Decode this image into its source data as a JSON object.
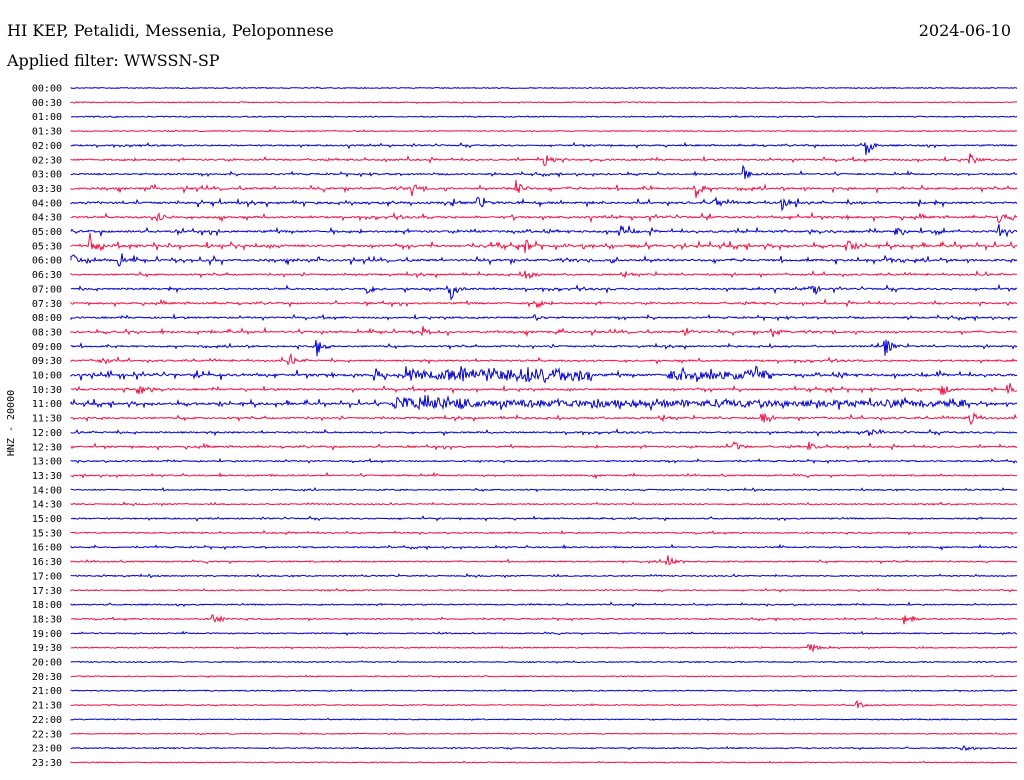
{
  "header": {
    "station": "HI KEP, Petalidi, Messenia, Peloponnese",
    "date": "2024-06-10",
    "filter": "Applied filter: WWSSN-SP"
  },
  "chart_data": {
    "type": "line",
    "title": "HI KEP, Petalidi, Messenia, Peloponnese",
    "ylabel": "HNZ - 20000",
    "xlabel": "",
    "grid": false,
    "series_colors": [
      "#0000cc",
      "#ee1144"
    ],
    "row_labels": [
      "00:00",
      "00:30",
      "01:00",
      "01:30",
      "02:00",
      "02:30",
      "03:00",
      "03:30",
      "04:00",
      "04:30",
      "05:00",
      "05:30",
      "06:00",
      "06:30",
      "07:00",
      "07:30",
      "08:00",
      "08:30",
      "09:00",
      "09:30",
      "10:00",
      "10:30",
      "11:00",
      "11:30",
      "12:00",
      "12:30",
      "13:00",
      "13:30",
      "14:00",
      "14:30",
      "15:00",
      "15:30",
      "16:00",
      "16:30",
      "17:00",
      "17:30",
      "18:00",
      "18:30",
      "19:00",
      "19:30",
      "20:00",
      "20:30",
      "21:00",
      "21:30",
      "22:00",
      "22:30",
      "23:00",
      "23:30"
    ],
    "row_activity": [
      0.1,
      0.15,
      0.15,
      0.15,
      0.4,
      0.5,
      0.45,
      0.7,
      0.75,
      0.7,
      0.75,
      0.85,
      0.8,
      0.55,
      0.6,
      0.55,
      0.5,
      0.6,
      0.5,
      0.55,
      0.9,
      0.6,
      0.85,
      0.55,
      0.5,
      0.5,
      0.35,
      0.4,
      0.3,
      0.3,
      0.35,
      0.3,
      0.35,
      0.35,
      0.3,
      0.25,
      0.3,
      0.3,
      0.25,
      0.2,
      0.2,
      0.15,
      0.15,
      0.15,
      0.15,
      0.15,
      0.2,
      0.15
    ],
    "events": [
      {
        "row": 4,
        "pos": 0.84,
        "amp": 14
      },
      {
        "row": 5,
        "pos": 0.5,
        "amp": 10
      },
      {
        "row": 5,
        "pos": 0.95,
        "amp": 6
      },
      {
        "row": 6,
        "pos": 0.71,
        "amp": 8
      },
      {
        "row": 7,
        "pos": 0.36,
        "amp": 7
      },
      {
        "row": 7,
        "pos": 0.47,
        "amp": 12
      },
      {
        "row": 7,
        "pos": 0.66,
        "amp": 10
      },
      {
        "row": 8,
        "pos": 0.43,
        "amp": 8
      },
      {
        "row": 8,
        "pos": 0.68,
        "amp": 9
      },
      {
        "row": 8,
        "pos": 0.75,
        "amp": 10
      },
      {
        "row": 9,
        "pos": 0.09,
        "amp": 9
      },
      {
        "row": 9,
        "pos": 0.98,
        "amp": 10
      },
      {
        "row": 10,
        "pos": 0.58,
        "amp": 7
      },
      {
        "row": 10,
        "pos": 0.87,
        "amp": 9
      },
      {
        "row": 10,
        "pos": 0.98,
        "amp": 8
      },
      {
        "row": 11,
        "pos": 0.02,
        "amp": 10
      },
      {
        "row": 11,
        "pos": 0.48,
        "amp": 8
      },
      {
        "row": 11,
        "pos": 0.82,
        "amp": 9
      },
      {
        "row": 12,
        "pos": 0.0,
        "amp": 10
      },
      {
        "row": 12,
        "pos": 0.05,
        "amp": 9
      },
      {
        "row": 12,
        "pos": 0.86,
        "amp": 5
      },
      {
        "row": 13,
        "pos": 0.48,
        "amp": 8
      },
      {
        "row": 14,
        "pos": 0.31,
        "amp": 10
      },
      {
        "row": 14,
        "pos": 0.4,
        "amp": 14
      },
      {
        "row": 14,
        "pos": 0.78,
        "amp": 12
      },
      {
        "row": 15,
        "pos": 0.49,
        "amp": 7
      },
      {
        "row": 16,
        "pos": 0.49,
        "amp": 6
      },
      {
        "row": 17,
        "pos": 0.37,
        "amp": 8
      },
      {
        "row": 17,
        "pos": 0.65,
        "amp": 7
      },
      {
        "row": 17,
        "pos": 0.74,
        "amp": 8
      },
      {
        "row": 18,
        "pos": 0.26,
        "amp": 12
      },
      {
        "row": 18,
        "pos": 0.86,
        "amp": 11
      },
      {
        "row": 19,
        "pos": 0.03,
        "amp": 8
      },
      {
        "row": 19,
        "pos": 0.23,
        "amp": 7
      },
      {
        "row": 20,
        "pos": 0.32,
        "amp": 9
      },
      {
        "row": 20,
        "pos": 0.48,
        "amp": 7
      },
      {
        "row": 21,
        "pos": 0.07,
        "amp": 10
      },
      {
        "row": 21,
        "pos": 0.92,
        "amp": 9
      },
      {
        "row": 21,
        "pos": 0.99,
        "amp": 7
      },
      {
        "row": 23,
        "pos": 0.95,
        "amp": 11
      },
      {
        "row": 23,
        "pos": 0.73,
        "amp": 7
      },
      {
        "row": 24,
        "pos": 0.84,
        "amp": 9
      },
      {
        "row": 25,
        "pos": 0.7,
        "amp": 7
      },
      {
        "row": 25,
        "pos": 0.78,
        "amp": 5
      },
      {
        "row": 33,
        "pos": 0.63,
        "amp": 10
      },
      {
        "row": 37,
        "pos": 0.15,
        "amp": 9
      },
      {
        "row": 37,
        "pos": 0.88,
        "amp": 8
      },
      {
        "row": 39,
        "pos": 0.78,
        "amp": 10
      },
      {
        "row": 43,
        "pos": 0.83,
        "amp": 5
      },
      {
        "row": 46,
        "pos": 0.94,
        "amp": 5
      }
    ],
    "bursts": [
      {
        "row": 20,
        "start": 0.35,
        "end": 0.55,
        "amp": 6
      },
      {
        "row": 20,
        "start": 0.63,
        "end": 0.74,
        "amp": 5
      },
      {
        "row": 22,
        "start": 0.34,
        "end": 0.42,
        "amp": 7
      },
      {
        "row": 22,
        "start": 0.42,
        "end": 0.95,
        "amp": 3
      }
    ]
  }
}
